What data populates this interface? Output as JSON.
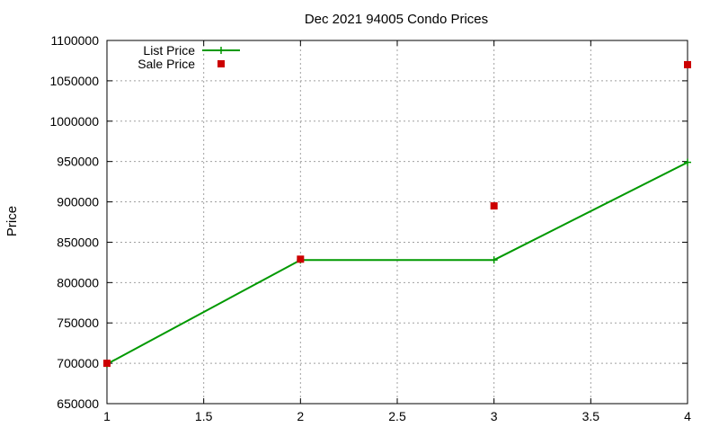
{
  "chart_data": {
    "type": "line",
    "title": "Dec 2021 94005 Condo Prices",
    "xlabel": "",
    "ylabel": "Price",
    "xlim": [
      1,
      4
    ],
    "ylim": [
      650000,
      1100000
    ],
    "xticks": [
      "1",
      "1.5",
      "2",
      "2.5",
      "3",
      "3.5",
      "4"
    ],
    "yticks": [
      "650000",
      "700000",
      "750000",
      "800000",
      "850000",
      "900000",
      "950000",
      "1000000",
      "1050000",
      "1100000"
    ],
    "grid": true,
    "legend_position": "top-left",
    "series": [
      {
        "name": "List Price",
        "style": "line-with-plus-markers",
        "color": "#009900",
        "x": [
          1,
          2,
          3,
          4
        ],
        "y": [
          699000,
          828000,
          828000,
          949000
        ]
      },
      {
        "name": "Sale Price",
        "style": "square-markers",
        "color": "#cc0000",
        "x": [
          1,
          2,
          3,
          4
        ],
        "y": [
          700000,
          829000,
          895000,
          1070000
        ]
      }
    ]
  }
}
